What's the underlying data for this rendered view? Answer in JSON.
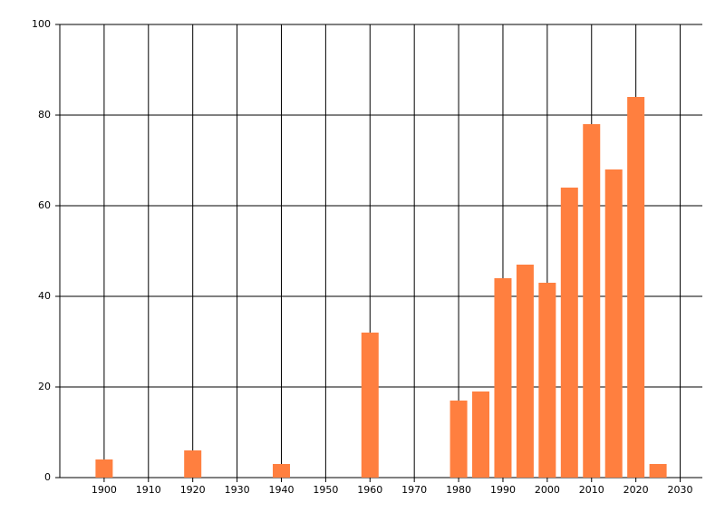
{
  "chart_data": {
    "type": "bar",
    "x": [
      1900,
      1920,
      1940,
      1960,
      1980,
      1985,
      1990,
      1995,
      2000,
      2005,
      2010,
      2015,
      2020,
      2025
    ],
    "values": [
      4,
      6,
      3,
      32,
      17,
      19,
      44,
      47,
      43,
      64,
      78,
      68,
      84,
      3
    ],
    "color": "#ff7f3f",
    "xlim": [
      1890,
      2035
    ],
    "xticks": [
      1900,
      1910,
      1920,
      1930,
      1940,
      1950,
      1960,
      1970,
      1980,
      1990,
      2000,
      2010,
      2020,
      2030
    ],
    "ylim": [
      0,
      100
    ],
    "yticks": [
      0,
      20,
      40,
      60,
      80,
      100
    ],
    "grid": true
  }
}
